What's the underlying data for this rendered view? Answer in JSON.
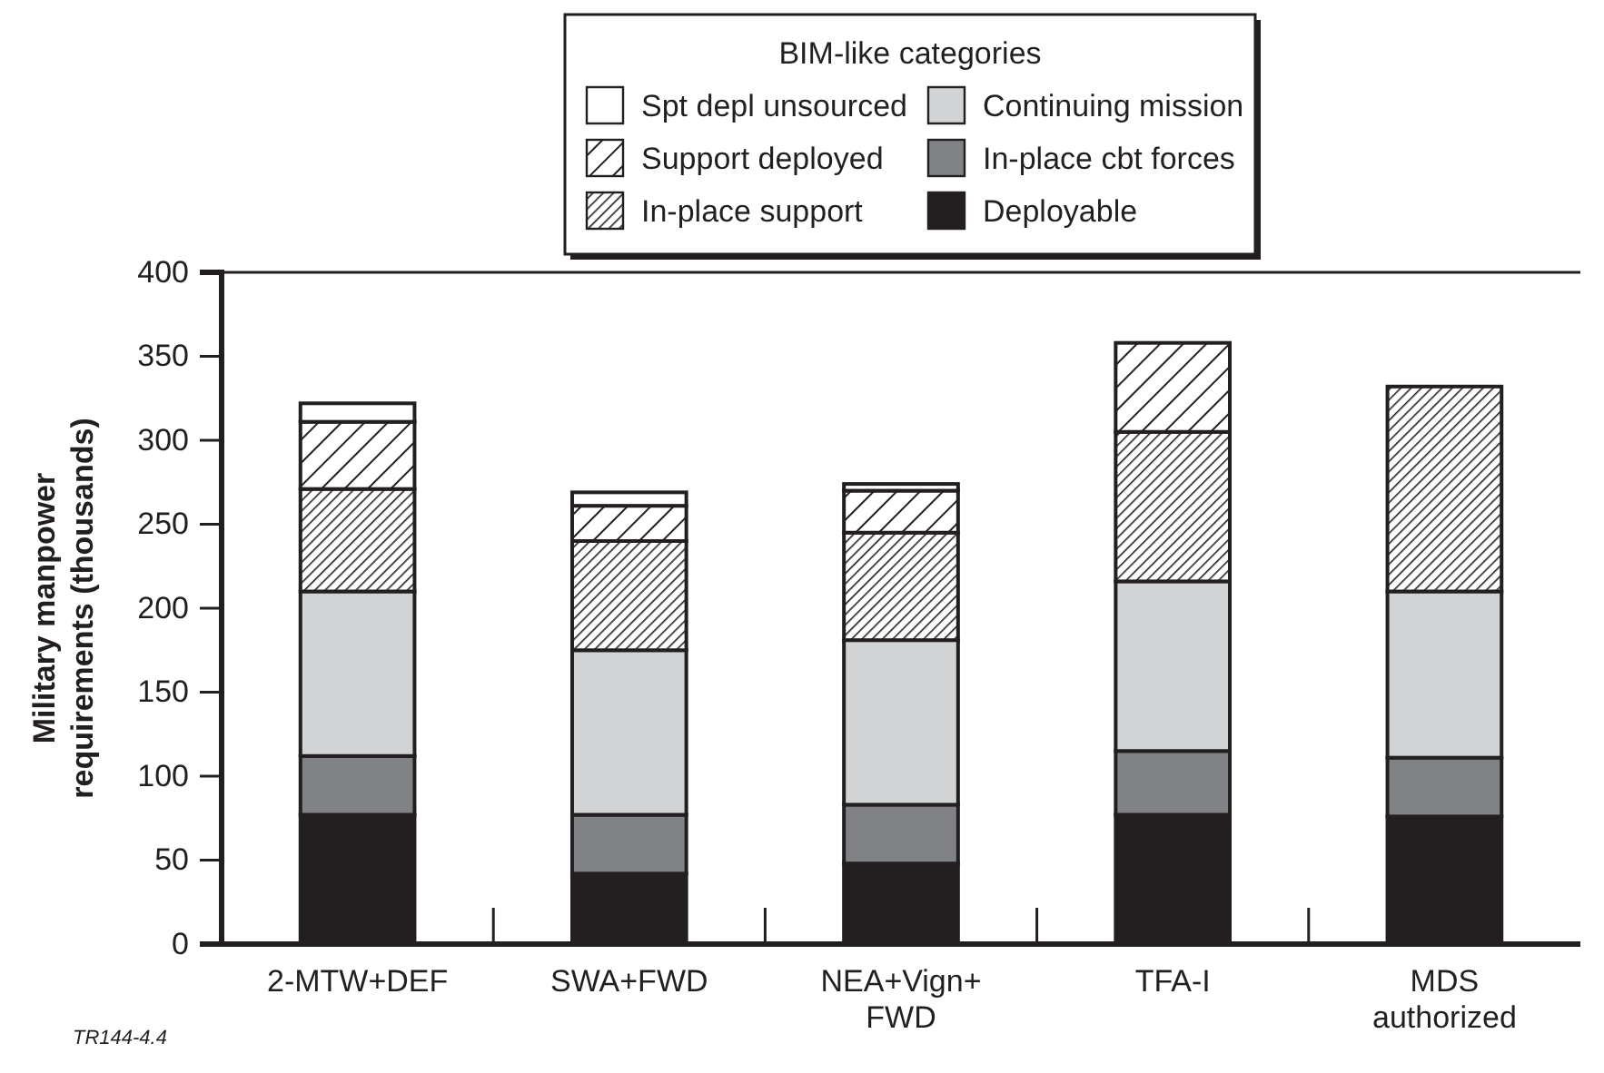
{
  "chart_data": {
    "type": "bar",
    "stacked": true,
    "categories": [
      "2-MTW+DEF",
      "SWA+FWD",
      "NEA+Vign+\nFWD",
      "TFA-I",
      "MDS\nauthorized"
    ],
    "ylabel": "Military manpower\nrequirements (thousands)",
    "ylim": [
      0,
      400
    ],
    "yticks": [
      0,
      50,
      100,
      150,
      200,
      250,
      300,
      350,
      400
    ],
    "legend": "top",
    "legend_title": "BIM-like categories",
    "annotations": [
      "TR144-4.4"
    ],
    "series": [
      {
        "name": "Deployable",
        "color": "#231f20",
        "values": [
          77,
          42,
          48,
          77,
          76
        ]
      },
      {
        "name": "In-place cbt forces",
        "color": "#808285",
        "values": [
          35,
          35,
          35,
          38,
          35
        ]
      },
      {
        "name": "Continuing mission",
        "color": "#d1d3d4",
        "values": [
          98,
          98,
          98,
          101,
          99
        ]
      },
      {
        "name": "In-place support",
        "color": "#231f20",
        "values": [
          61,
          65,
          64,
          89,
          122
        ]
      },
      {
        "name": "Support deployed",
        "color": "#231f20",
        "values": [
          40,
          21,
          25,
          53,
          null
        ]
      },
      {
        "name": "Spt depl unsourced",
        "color": "#ffffff",
        "values": [
          11,
          8,
          4,
          null,
          null
        ]
      }
    ]
  }
}
